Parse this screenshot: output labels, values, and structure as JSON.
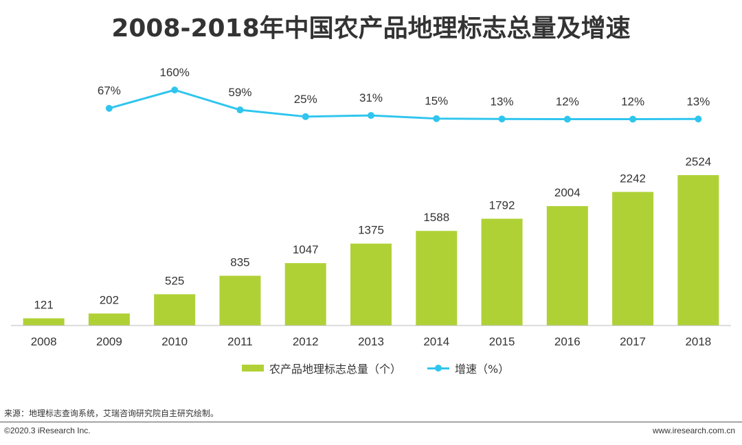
{
  "title": "2008-2018年中国农产品地理标志总量及增速",
  "chart_data": {
    "type": "bar",
    "title": "2008-2018年中国农产品地理标志总量及增速",
    "categories": [
      "2008",
      "2009",
      "2010",
      "2011",
      "2012",
      "2013",
      "2014",
      "2015",
      "2016",
      "2017",
      "2018"
    ],
    "series": [
      {
        "name": "农产品地理标志总量（个）",
        "type": "bar",
        "color": "#b0d136",
        "values": [
          121,
          202,
          525,
          835,
          1047,
          1375,
          1588,
          1792,
          2004,
          2242,
          2524
        ],
        "labels": [
          "121",
          "202",
          "525",
          "835",
          "1047",
          "1375",
          "1588",
          "1792",
          "2004",
          "2242",
          "2524"
        ]
      },
      {
        "name": "增速（%）",
        "type": "line",
        "color": "#2fc5ee",
        "values": [
          null,
          67,
          160,
          59,
          25,
          31,
          15,
          13,
          12,
          12,
          13
        ],
        "labels": [
          null,
          "67%",
          "160%",
          "59%",
          "25%",
          "31%",
          "15%",
          "13%",
          "12%",
          "12%",
          "13%"
        ]
      }
    ],
    "bar_ylim": [
      0,
      2524
    ],
    "line_ylim": [
      0,
      160
    ],
    "xlabel": "",
    "ylabel": "",
    "grid": false,
    "legend_position": "bottom-center"
  },
  "legend": {
    "bar_label": "农产品地理标志总量（个）",
    "line_label": "增速（%）"
  },
  "footer": {
    "source": "来源：地理标志查询系统，艾瑞咨询研究院自主研究绘制。",
    "copyright": "©2020.3 iResearch Inc.",
    "website": "www.iresearch.com.cn"
  }
}
